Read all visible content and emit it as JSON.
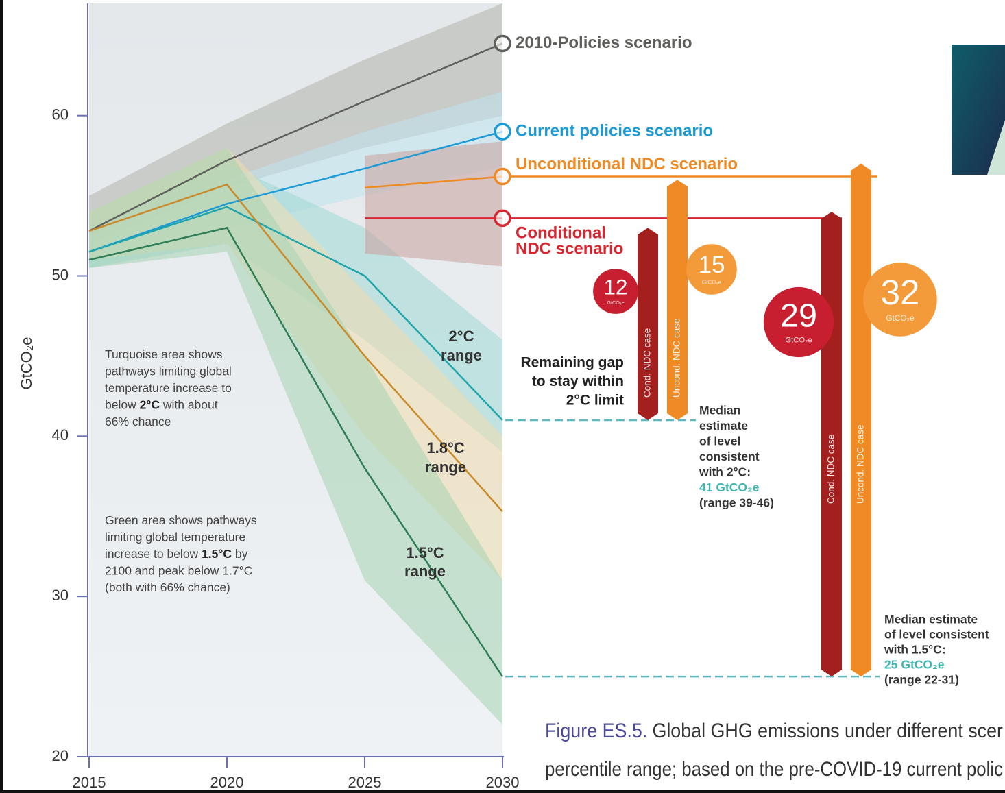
{
  "chart_data": {
    "type": "line",
    "y_label": "GtCO₂e",
    "x": [
      2015,
      2020,
      2025,
      2030
    ],
    "xlim": [
      2015,
      2030
    ],
    "xticks": [
      2015,
      2020,
      2025,
      2030
    ],
    "ylim": [
      20,
      67
    ],
    "yticks": [
      20,
      30,
      40,
      50,
      60
    ],
    "series": [
      {
        "label_lines": [
          "2010-Policies scenario"
        ],
        "color": "#5e605b",
        "values": [
          52.8,
          57.2,
          60.9,
          64.5
        ],
        "band_lower": [
          52,
          55.5,
          58,
          60
        ],
        "band_upper": [
          55,
          59.5,
          63.5,
          67
        ],
        "band_color": "#b0b3ab"
      },
      {
        "label_lines": [
          "Current policies scenario"
        ],
        "color": "#1b9ad6",
        "values": [
          51.5,
          54.5,
          56.7,
          59
        ],
        "band_lower": [
          50.5,
          53,
          55,
          56.8
        ],
        "band_upper": [
          52.5,
          56,
          59,
          61.5
        ],
        "band_color": "#bfe3ef"
      },
      {
        "label_lines": [
          "2°C",
          "range"
        ],
        "color": "#1ea5ab",
        "values": [
          51.5,
          54.3,
          50,
          41
        ],
        "band_lower": [
          50.5,
          52,
          46,
          39
        ],
        "band_upper": [
          53,
          57,
          53,
          46
        ],
        "band_color": "#9fd8d4"
      },
      {
        "label_lines": [
          "1.8°C",
          "range"
        ],
        "color": "#c98a2a",
        "values": [
          52.8,
          55.7,
          45,
          35.3
        ],
        "band_lower": [
          51,
          52,
          40,
          31
        ],
        "band_upper": [
          54,
          58,
          49,
          40
        ],
        "band_color": "#f0dcae"
      },
      {
        "label_lines": [
          "1.5°C",
          "range"
        ],
        "color": "#2f7d55",
        "values": [
          51,
          53,
          38,
          25
        ],
        "band_lower": [
          50.5,
          51.5,
          31,
          22
        ],
        "band_upper": [
          54,
          58,
          45,
          31
        ],
        "band_color": "#a6d3b2"
      },
      {
        "label_lines": [
          "Unconditional NDC scenario"
        ],
        "color": "#f08a24",
        "values": [
          null,
          null,
          55.5,
          56.2
        ]
      },
      {
        "label_lines": [
          "Conditional",
          "NDC scenario"
        ],
        "color": "#d7262f",
        "values": [
          null,
          null,
          53.6,
          53.6
        ]
      }
    ],
    "ndc_band": {
      "color": "#c9a09d",
      "lower": [
        null,
        null,
        51.4,
        50.6
      ],
      "upper": [
        null,
        null,
        57.5,
        58.4
      ]
    },
    "annotation_lines": [
      "Remaining gap",
      "to stay within",
      "2°C limit"
    ],
    "notes": [
      [
        [
          "Turquoise area shows"
        ],
        [
          "pathways limiting global"
        ],
        [
          "temperature increase to"
        ],
        [
          "below ",
          "2°C",
          " with about"
        ],
        [
          "66% chance"
        ]
      ],
      [
        [
          "Green area shows pathways"
        ],
        [
          "limiting global temperature"
        ],
        [
          "increase to below ",
          "1.5°C",
          " by"
        ],
        [
          "2100 and peak below 1.7°C"
        ],
        [
          "(both with 66% chance)"
        ]
      ]
    ],
    "gap_unit": "GtCO₂e",
    "medians": [
      {
        "value": 41,
        "color": "#5fb8c0",
        "text_lines": [
          "Median",
          "estimate",
          "of level",
          "consistent",
          "with 2°C:"
        ],
        "value_label": "41 GtCO₂e",
        "range_label": "(range 39-46)",
        "gaps": [
          {
            "bar_label": "Cond. NDC case",
            "value": 12,
            "color": "#a3201f",
            "badge_color": "#c81f30"
          },
          {
            "bar_label": "Uncond. NDC case",
            "value": 15,
            "color": "#f08a24",
            "badge_color": "#f39a3a"
          }
        ]
      },
      {
        "value": 25,
        "color": "#5fb8c0",
        "text_lines": [
          "Median estimate",
          "of level consistent",
          "with 1.5°C:"
        ],
        "value_label": "25 GtCO₂e",
        "range_label": "(range 22-31)",
        "gaps": [
          {
            "bar_label": "Cond. NDC case",
            "value": 29,
            "color": "#a3201f",
            "badge_color": "#c81f30"
          },
          {
            "bar_label": "Uncond. NDC case",
            "value": 32,
            "color": "#f08a24",
            "badge_color": "#f39a3a"
          }
        ]
      }
    ],
    "caption": {
      "label": "Figure ES.5.",
      "lines": [
        "Global GHG emissions under different scer",
        "percentile range; based on the pre-COVID-19 current polic"
      ]
    }
  }
}
